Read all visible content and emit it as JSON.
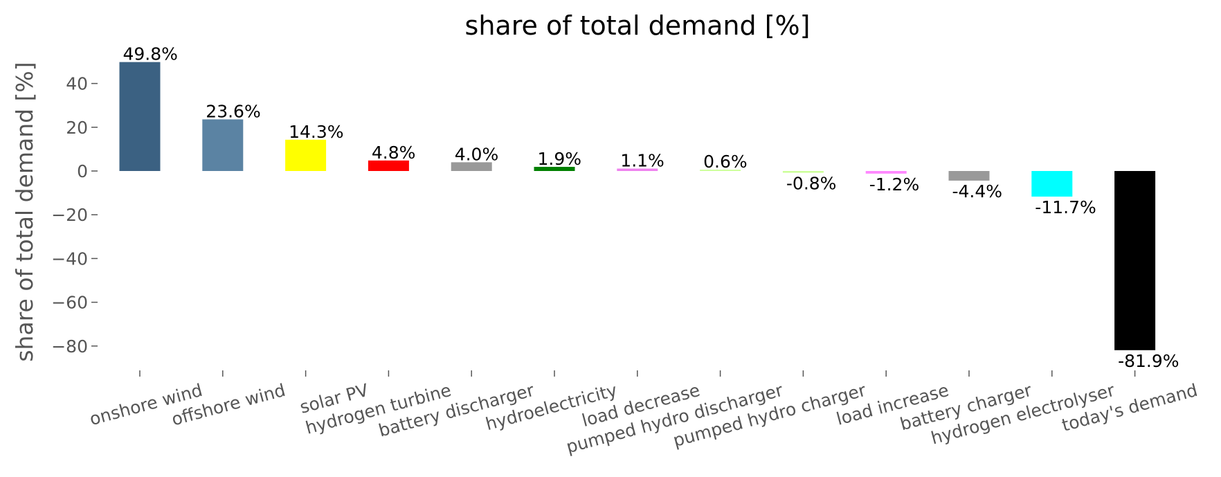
{
  "chart_data": {
    "type": "bar",
    "title": "share of total demand [%]",
    "xlabel": "",
    "ylabel": "share of total demand [%]",
    "ylim": [
      -90,
      55
    ],
    "yticks": [
      40,
      20,
      0,
      -20,
      -40,
      -60,
      -80
    ],
    "ytick_labels": [
      "40",
      "20",
      "0",
      "−20",
      "−40",
      "−60",
      "−80"
    ],
    "categories": [
      "onshore wind",
      "offshore wind",
      "solar PV",
      "hydrogen turbine",
      "battery discharger",
      "hydroelectricity",
      "load decrease",
      "pumped hydro discharger",
      "pumped hydro charger",
      "load increase",
      "battery charger",
      "hydrogen electrolyser",
      "today's demand"
    ],
    "values": [
      49.8,
      23.6,
      14.3,
      4.8,
      4.0,
      1.9,
      1.1,
      0.6,
      -0.8,
      -1.2,
      -4.4,
      -11.7,
      -81.9
    ],
    "data_labels": [
      "49.8%",
      "23.6%",
      "14.3%",
      "4.8%",
      "4.0%",
      "1.9%",
      "1.1%",
      "0.6%",
      "-0.8%",
      "-1.2%",
      "-4.4%",
      "-11.7%",
      "-81.9%"
    ],
    "colors": [
      "#3b6182",
      "#5b83a3",
      "#ffff00",
      "#ff0000",
      "#999999",
      "#008000",
      "#ee82ee",
      "#ccff99",
      "#ccff99",
      "#ff88ff",
      "#999999",
      "#00ffff",
      "#000000"
    ],
    "grid": false,
    "legend": "none"
  }
}
